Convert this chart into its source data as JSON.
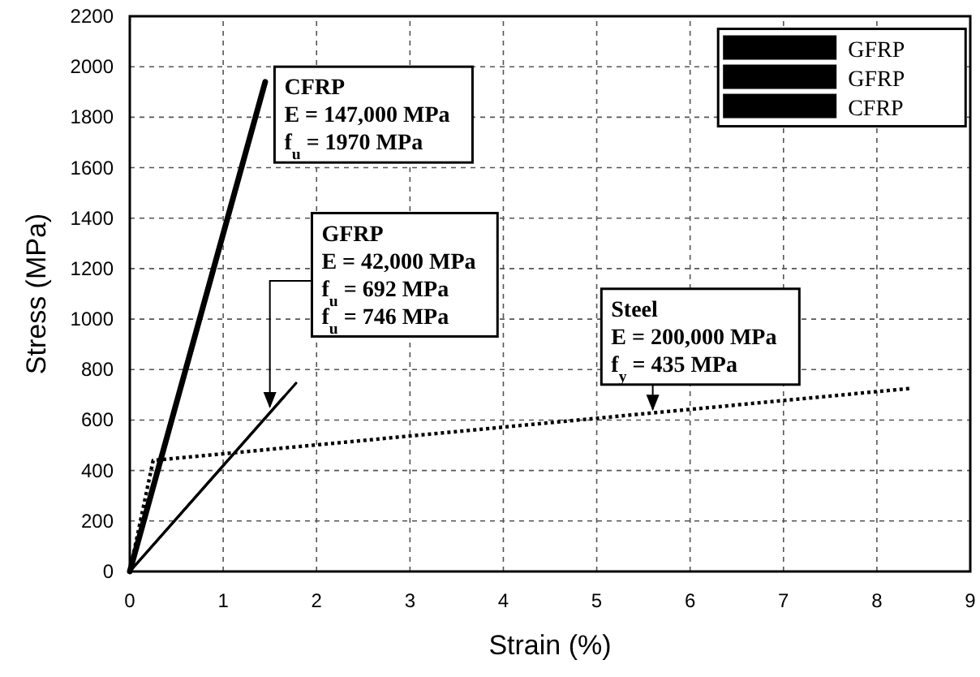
{
  "chart_data": {
    "type": "line",
    "xlabel": "Strain (%)",
    "ylabel": "Stress (MPa)",
    "xlim": [
      0,
      9
    ],
    "xticks": [
      0,
      1,
      2,
      3,
      4,
      5,
      6,
      7,
      8,
      9
    ],
    "ylim": [
      0,
      2200
    ],
    "yticks": [
      0,
      200,
      400,
      600,
      800,
      1000,
      1200,
      1400,
      1600,
      1800,
      2000,
      2200
    ],
    "grid": true,
    "legend": "top right",
    "marker": "none",
    "series": [
      {
        "name": "GFRP",
        "color": "#000000",
        "x": [
          0,
          1.65
        ],
        "values": [
          0,
          692
        ],
        "line_style": "solid"
      },
      {
        "name": "GFRP",
        "color": "#000000",
        "x": [
          0,
          1.78
        ],
        "values": [
          0,
          746
        ],
        "line_style": "solid"
      },
      {
        "name": "CFRP",
        "color": "#000000",
        "x": [
          0,
          1.45
        ],
        "values": [
          0,
          1940
        ],
        "line_style": "solid"
      },
      {
        "color": "#000000",
        "x": [
          0,
          0.25,
          8.35
        ],
        "values": [
          0,
          440,
          725
        ],
        "line_style": "dotted"
      }
    ],
    "annotations": [
      "CFRP\nE = 147,000 MPa\nf$_{u}$ = 1970 MPa",
      {
        "text": "GFRP\nE = 42,000 MPa\nf$_{u}$ = 692 MPa\nf$_{u}$ = 746 MPa",
        "x": 1.5,
        "y": 640
      },
      {
        "text": "Steel\nE = 200,000 MPa\nf$_{y}$ = 435 MPa",
        "x": 5.6,
        "y": 630
      }
    ]
  }
}
